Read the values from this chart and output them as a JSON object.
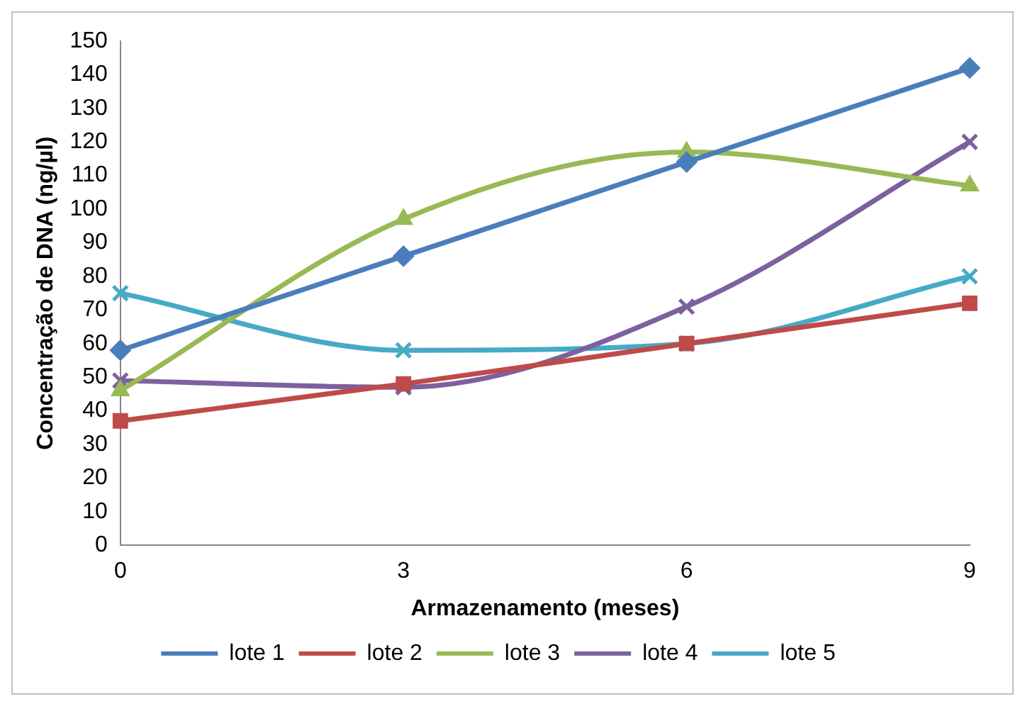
{
  "chart_data": {
    "type": "line",
    "xlabel": "Armazenamento (meses)",
    "ylabel": "Concentração de DNA (ng/µl)",
    "x": [
      0,
      3,
      6,
      9
    ],
    "xlim": [
      0,
      9
    ],
    "xticks": [
      0,
      3,
      6,
      9
    ],
    "ylim": [
      0,
      150
    ],
    "yticks": [
      0,
      10,
      20,
      30,
      40,
      50,
      60,
      70,
      80,
      90,
      100,
      110,
      120,
      130,
      140,
      150
    ],
    "grid": false,
    "legend": "bottom",
    "line_style": "solid",
    "series": [
      {
        "name": "lote 1",
        "color": "#4a7ebb",
        "marker": "diamond",
        "values": [
          58,
          86,
          114,
          142
        ]
      },
      {
        "name": "lote 2",
        "color": "#be4b48",
        "marker": "square",
        "values": [
          37,
          48,
          60,
          72
        ]
      },
      {
        "name": "lote 3",
        "color": "#98b954",
        "marker": "triangle",
        "values": [
          46,
          97,
          117,
          107
        ]
      },
      {
        "name": "lote 4",
        "color": "#7d60a0",
        "marker": "cross",
        "values": [
          49,
          47,
          71,
          120
        ]
      },
      {
        "name": "lote 5",
        "color": "#46aac5",
        "marker": "cross",
        "values": [
          75,
          58,
          60,
          80
        ]
      }
    ]
  }
}
